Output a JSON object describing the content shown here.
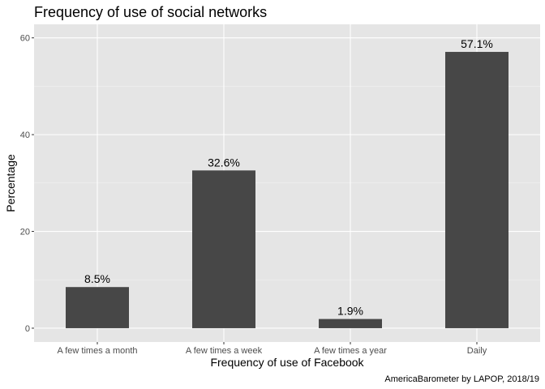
{
  "chart_data": {
    "type": "bar",
    "title": "Frequency of use of social networks",
    "xlabel": "Frequency of use of Facebook",
    "ylabel": "Percentage",
    "caption": "AmericaBarometer by LAPOP, 2018/19",
    "categories": [
      "A few times a month",
      "A few times a week",
      "A few times a year",
      "Daily"
    ],
    "values": [
      8.5,
      32.6,
      1.9,
      57.1
    ],
    "data_labels": [
      "8.5%",
      "32.6%",
      "1.9%",
      "57.1%"
    ],
    "yticks": [
      0,
      20,
      40,
      60
    ],
    "ytick_labels": [
      "0",
      "20",
      "40",
      "60"
    ],
    "ylim": [
      -2.855,
      62.8
    ],
    "grid": true,
    "colors": {
      "bar": "#474747",
      "panel": "#e5e5e5",
      "grid_major": "#ffffff",
      "grid_minor": "#f2f2f2"
    }
  }
}
